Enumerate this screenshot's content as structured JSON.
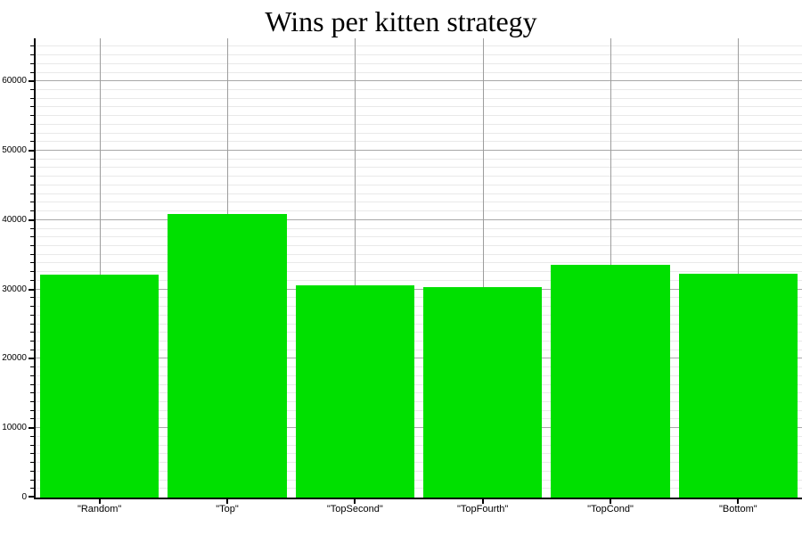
{
  "chart_data": {
    "type": "bar",
    "title": "Wins per kitten strategy",
    "categories": [
      "Random",
      "Top",
      "TopSecond",
      "TopFourth",
      "TopCond",
      "Bottom"
    ],
    "tick_labels": [
      "\"Random\"",
      "\"Top\"",
      "\"TopSecond\"",
      "\"TopFourth\"",
      "\"TopCond\"",
      "\"Bottom\""
    ],
    "values": [
      32100,
      40900,
      30600,
      30350,
      33550,
      32250
    ],
    "xlabel": "",
    "ylabel": "",
    "ylim": [
      0,
      66200
    ],
    "y_major_ticks": [
      0,
      10000,
      20000,
      30000,
      40000,
      50000,
      60000
    ],
    "y_major_tick_labels": [
      "0",
      "10000",
      "20000",
      "30000",
      "40000",
      "50000",
      "60000"
    ],
    "y_minor_step": 1250,
    "grid": true,
    "legend": "none",
    "bar_color": "#00E000",
    "major_grid_color": "#a8a8a8",
    "minor_grid_color": "#e9e9e9",
    "vertical_grid_color": "#9d9d9d",
    "axis_color": "#000000",
    "background": "#ffffff"
  }
}
